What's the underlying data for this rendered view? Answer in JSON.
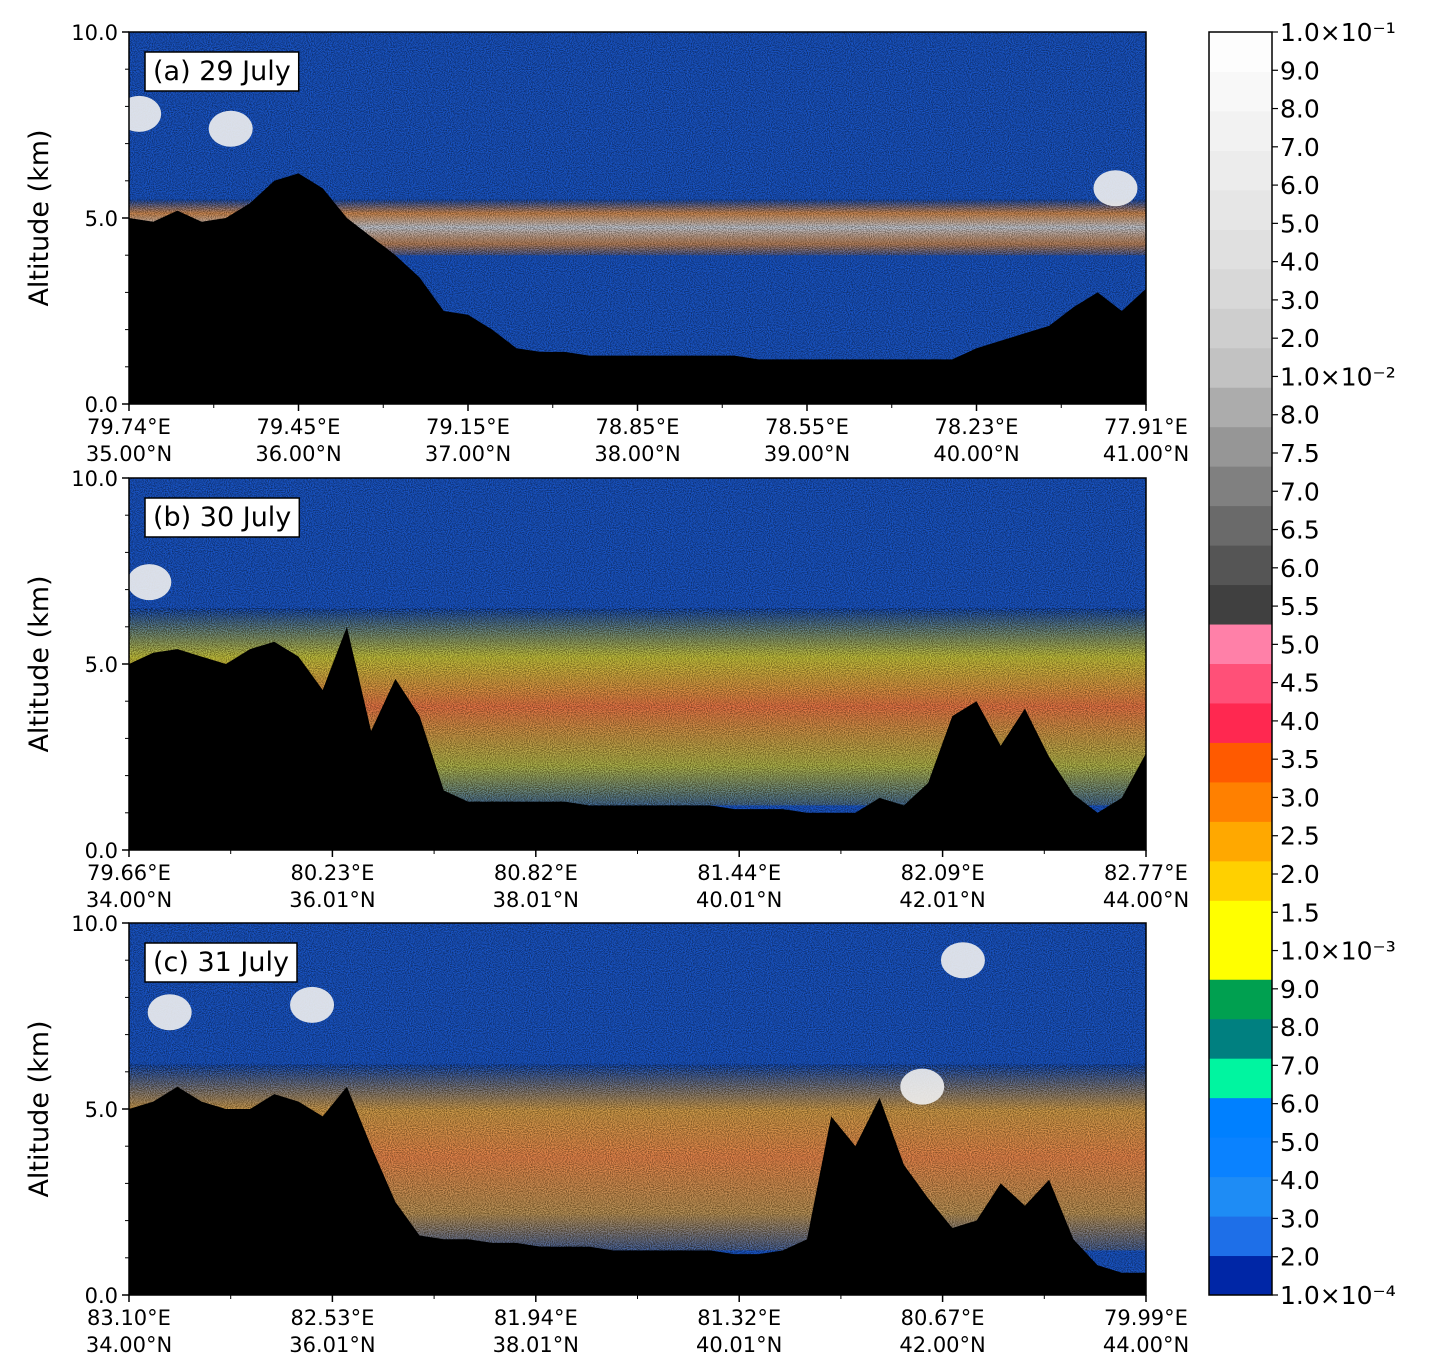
{
  "chart_data": [
    {
      "type": "heatmap",
      "panel_label": "(a) 29 July",
      "ylabel": "Altitude (km)",
      "ylim": [
        0,
        10
      ],
      "yticks": [
        "0.0",
        "5.0",
        "10.0"
      ],
      "xticks": [
        {
          "lon": "79.74°E",
          "lat": "35.00°N"
        },
        {
          "lon": "79.45°E",
          "lat": "36.00°N"
        },
        {
          "lon": "79.15°E",
          "lat": "37.00°N"
        },
        {
          "lon": "78.85°E",
          "lat": "38.00°N"
        },
        {
          "lon": "78.55°E",
          "lat": "39.00°N"
        },
        {
          "lon": "78.23°E",
          "lat": "40.00°N"
        },
        {
          "lon": "77.91°E",
          "lat": "41.00°N"
        }
      ],
      "terrain_km": [
        5.0,
        4.9,
        5.2,
        4.9,
        5.0,
        5.4,
        6.0,
        6.2,
        5.8,
        5.0,
        4.5,
        4.0,
        3.4,
        2.5,
        2.4,
        2.0,
        1.5,
        1.4,
        1.4,
        1.3,
        1.3,
        1.3,
        1.3,
        1.3,
        1.3,
        1.3,
        1.2,
        1.2,
        1.2,
        1.2,
        1.2,
        1.2,
        1.2,
        1.2,
        1.2,
        1.5,
        1.7,
        1.9,
        2.1,
        2.6,
        3.0,
        2.5,
        3.1
      ],
      "aerosol_layer": {
        "top_km": 5.5,
        "base_km": 4.0,
        "level": "high"
      },
      "clouds": [
        {
          "x_frac": 0.01,
          "alt_km": 7.8
        },
        {
          "x_frac": 0.1,
          "alt_km": 7.4
        },
        {
          "x_frac": 0.97,
          "alt_km": 5.8
        }
      ]
    },
    {
      "type": "heatmap",
      "panel_label": "(b) 30 July",
      "ylabel": "Altitude (km)",
      "ylim": [
        0,
        10
      ],
      "yticks": [
        "0.0",
        "5.0",
        "10.0"
      ],
      "xticks": [
        {
          "lon": "79.66°E",
          "lat": "34.00°N"
        },
        {
          "lon": "80.23°E",
          "lat": "36.01°N"
        },
        {
          "lon": "80.82°E",
          "lat": "38.01°N"
        },
        {
          "lon": "81.44°E",
          "lat": "40.01°N"
        },
        {
          "lon": "82.09°E",
          "lat": "42.01°N"
        },
        {
          "lon": "82.77°E",
          "lat": "44.00°N"
        }
      ],
      "terrain_km": [
        5.0,
        5.3,
        5.4,
        5.2,
        5.0,
        5.4,
        5.6,
        5.2,
        4.3,
        6.0,
        3.2,
        4.6,
        3.6,
        1.6,
        1.3,
        1.3,
        1.3,
        1.3,
        1.3,
        1.2,
        1.2,
        1.2,
        1.2,
        1.2,
        1.2,
        1.1,
        1.1,
        1.1,
        1.0,
        1.0,
        1.0,
        1.4,
        1.2,
        1.8,
        3.6,
        4.0,
        2.8,
        3.8,
        2.5,
        1.5,
        1.0,
        1.4,
        2.6
      ],
      "aerosol_layer": {
        "top_km": 6.5,
        "base_km": 1.2,
        "level": "medium"
      },
      "clouds": [
        {
          "x_frac": 0.02,
          "alt_km": 7.2
        }
      ]
    },
    {
      "type": "heatmap",
      "panel_label": "(c) 31 July",
      "ylabel": "Altitude (km)",
      "ylim": [
        0,
        10
      ],
      "yticks": [
        "0.0",
        "5.0",
        "10.0"
      ],
      "xticks": [
        {
          "lon": "83.10°E",
          "lat": "34.00°N"
        },
        {
          "lon": "82.53°E",
          "lat": "36.01°N"
        },
        {
          "lon": "81.94°E",
          "lat": "38.01°N"
        },
        {
          "lon": "81.32°E",
          "lat": "40.01°N"
        },
        {
          "lon": "80.67°E",
          "lat": "42.00°N"
        },
        {
          "lon": "79.99°E",
          "lat": "44.00°N"
        }
      ],
      "terrain_km": [
        5.0,
        5.2,
        5.6,
        5.2,
        5.0,
        5.0,
        5.4,
        5.2,
        4.8,
        5.6,
        4.0,
        2.5,
        1.6,
        1.5,
        1.5,
        1.4,
        1.4,
        1.3,
        1.3,
        1.3,
        1.2,
        1.2,
        1.2,
        1.2,
        1.2,
        1.1,
        1.1,
        1.2,
        1.5,
        4.8,
        4.0,
        5.3,
        3.5,
        2.6,
        1.8,
        2.0,
        3.0,
        2.4,
        3.1,
        1.5,
        0.8,
        0.6,
        0.6
      ],
      "aerosol_layer": {
        "top_km": 6.2,
        "base_km": 1.2,
        "level": "medium-high"
      },
      "clouds": [
        {
          "x_frac": 0.04,
          "alt_km": 7.6
        },
        {
          "x_frac": 0.18,
          "alt_km": 7.8
        },
        {
          "x_frac": 0.82,
          "alt_km": 9.0
        },
        {
          "x_frac": 0.78,
          "alt_km": 5.6
        }
      ]
    }
  ],
  "colorbar": {
    "colors": [
      "#0026a6",
      "#1e6fe8",
      "#1e8cf5",
      "#0a82ff",
      "#0080ff",
      "#00f5a0",
      "#008080",
      "#00a050",
      "#ffff00",
      "#ffff00",
      "#ffd000",
      "#ffa800",
      "#ff8000",
      "#ff5a00",
      "#ff2850",
      "#ff5078",
      "#ff80a8",
      "#404040",
      "#555555",
      "#6a6a6a",
      "#808080",
      "#969696",
      "#acacac",
      "#c2c2c2",
      "#cecece",
      "#d8d8d8",
      "#e0e0e0",
      "#e6e6e6",
      "#ececec",
      "#f2f2f2",
      "#f8f8f8",
      "#fdfdfd"
    ],
    "tick_labels": [
      "1.0×10⁻⁴",
      "2.0",
      "3.0",
      "4.0",
      "5.0",
      "6.0",
      "7.0",
      "8.0",
      "9.0",
      "1.0×10⁻³",
      "1.5",
      "2.0",
      "2.5",
      "3.0",
      "3.5",
      "4.0",
      "4.5",
      "5.0",
      "5.5",
      "6.0",
      "6.5",
      "7.0",
      "7.5",
      "8.0",
      "1.0×10⁻²",
      "2.0",
      "3.0",
      "4.0",
      "5.0",
      "6.0",
      "7.0",
      "8.0",
      "9.0",
      "1.0×10⁻¹"
    ]
  }
}
